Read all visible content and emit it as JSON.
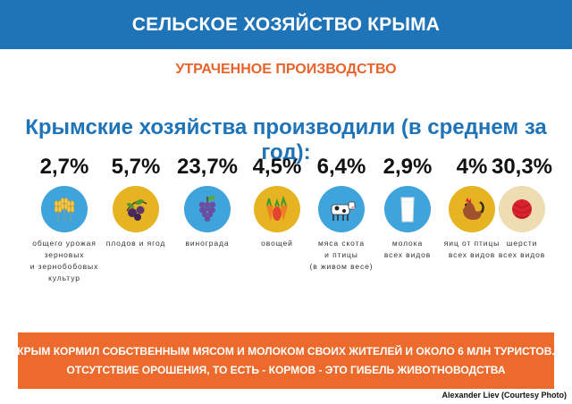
{
  "header": {
    "title": "СЕЛЬСКОЕ ХОЗЯЙСТВО КРЫМА"
  },
  "subtitle": "УТРАЧЕННОЕ ПРОИЗВОДСТВО",
  "headline": "Крымские хозяйства производили (в среднем за год):",
  "stats": [
    {
      "value": "2,7%",
      "icon": "wheat-icon",
      "color": "#3fa4dc",
      "label": [
        "общего урожая",
        "зерновых",
        "и зернобобовых",
        "культур"
      ]
    },
    {
      "value": "5,7%",
      "icon": "fruit-icon",
      "color": "#e6b422",
      "label": [
        "плодов и ягод"
      ]
    },
    {
      "value": "23,7%",
      "icon": "grapes-icon",
      "color": "#3fa4dc",
      "label": [
        "винограда"
      ]
    },
    {
      "value": "4,5%",
      "icon": "vegetables-icon",
      "color": "#e6b422",
      "label": [
        "овощей"
      ]
    },
    {
      "value": "6,4%",
      "icon": "cow-icon",
      "color": "#3fa4dc",
      "label": [
        "мяса скота",
        "и птицы",
        "(в живом весе)"
      ]
    },
    {
      "value": "2,9%",
      "icon": "milk-icon",
      "color": "#3fa4dc",
      "label": [
        "молока",
        "всех видов"
      ]
    },
    {
      "value": "4%",
      "icon": "chicken-icon",
      "color": "#e6b422",
      "label": [
        "яиц от птицы",
        "всех видов"
      ]
    },
    {
      "value": "30,3%",
      "icon": "wool-icon",
      "color": "#eeddb3",
      "label": [
        "шерсти",
        "всех видов"
      ]
    }
  ],
  "banner": {
    "line1": "КРЫМ КОРМИЛ СОБСТВЕННЫМ МЯСОМ И МОЛОКОМ СВОИХ ЖИТЕЛЕЙ И ОКОЛО  6 МЛН ТУРИСТОВ.",
    "line2": "ОТСУТСТВИЕ ОРОШЕНИЯ, ТО ЕСТЬ - КОРМОВ - ЭТО ГИБЕЛЬ ЖИВОТНОВОДСТВА"
  },
  "credit": "Alexander Liev (Courtesy Photo)"
}
